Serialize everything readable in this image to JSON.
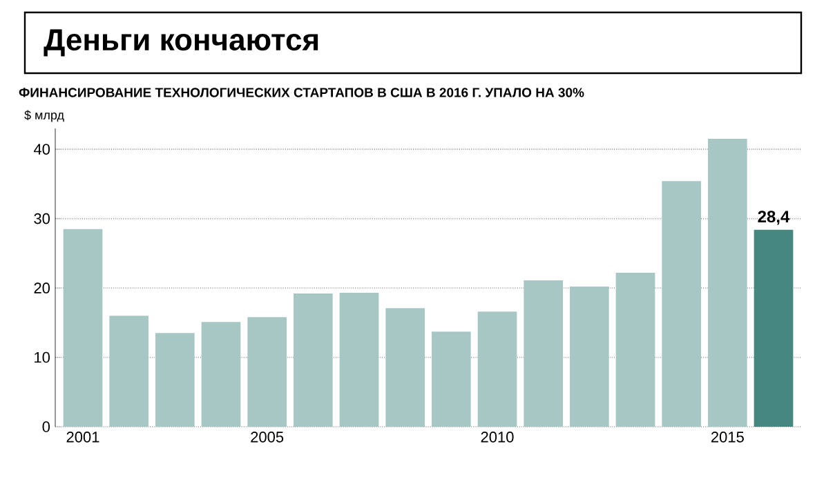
{
  "chart_data": {
    "type": "bar",
    "title": "Деньги кончаются",
    "subtitle": "ФИНАНСИРОВАНИЕ ТЕХНОЛОГИЧЕСКИХ СТАРТАПОВ В США В 2016 Г. УПАЛО НА 30%",
    "ylabel": "$ млрд",
    "categories": [
      "2001",
      null,
      null,
      null,
      "2005",
      null,
      null,
      null,
      null,
      "2010",
      null,
      null,
      null,
      null,
      "2015",
      null
    ],
    "values": [
      28.5,
      16.0,
      13.5,
      15.1,
      15.8,
      19.2,
      19.3,
      17.1,
      13.7,
      16.6,
      21.1,
      20.2,
      22.2,
      35.4,
      41.5,
      28.4
    ],
    "colors": [
      "#a7c7c5",
      "#a7c7c5",
      "#a7c7c5",
      "#a7c7c5",
      "#a7c7c5",
      "#a7c7c5",
      "#a7c7c5",
      "#a7c7c5",
      "#a7c7c5",
      "#a7c7c5",
      "#a7c7c5",
      "#a7c7c5",
      "#a7c7c5",
      "#a7c7c5",
      "#a7c7c5",
      "#46877f"
    ],
    "value_labels": [
      null,
      null,
      null,
      null,
      null,
      null,
      null,
      null,
      null,
      null,
      null,
      null,
      null,
      null,
      null,
      "28,4"
    ],
    "ylim": [
      0,
      43
    ],
    "yticks": [
      0,
      10,
      20,
      30,
      40
    ],
    "grid": "y"
  }
}
